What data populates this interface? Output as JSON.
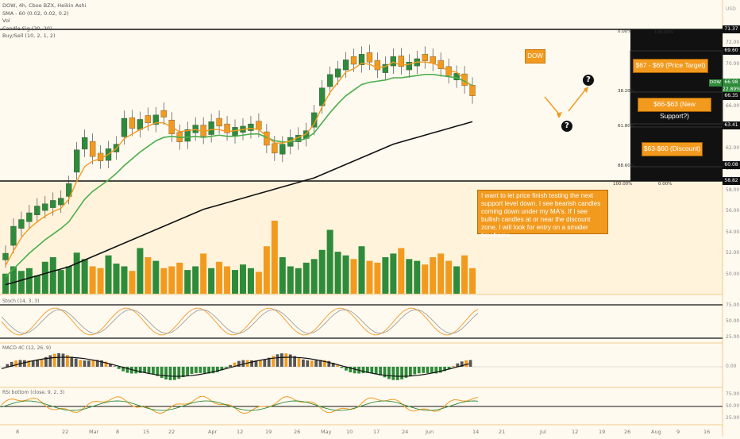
{
  "legend": {
    "main": "DOW, 4h, Cboe BZX, Heikin Ashi",
    "sma": "SMA - 60 (0.02, 0.02, 0.2)",
    "vol": "Vol",
    "comb": "Candle Sig (20, 20)",
    "buysell": "Buy/Sell (10, 2, 1, 2)",
    "stoch": "Stoch (14, 3, 3)",
    "macd": "MACD 4C (12, 26, 9)",
    "rsi": "RSI bottom (close, 9, 2, 3)"
  },
  "ticker_tag": "DOW",
  "note": "I want to let price finish testing the next support level down. I see bearish candles coming down under my MA's. If I see bullish candles at or near the discount zone, I will look for entry on a smaller timeframe.",
  "targets": {
    "target": "$67 - $69 (Price Target)",
    "support": "$66-$63 (New Support?)",
    "discount": "$63-$60 (Discount)"
  },
  "fib": {
    "l0": "0.00%",
    "l100": "100.00%",
    "l38": "38.20%",
    "l61": "61.80%",
    "l88": "88.60%",
    "r100": "100.00%",
    "r0": "0.00%"
  },
  "price_labels": {
    "p1": "71.37",
    "p2": "69.60",
    "p3": "66.98",
    "p4": "22.89%",
    "p5": "66.35",
    "p6": "63.41",
    "p7": "60.08",
    "p8": "58.82",
    "dow": "DOW"
  },
  "axis": {
    "top": "USD",
    "ticks": [
      "72.00",
      "70.00",
      "68.00",
      "66.00",
      "64.00",
      "62.00",
      "60.00",
      "58.00",
      "56.00",
      "54.00",
      "52.00",
      "50.00"
    ],
    "stoch": [
      "75.00",
      "50.00",
      "25.00"
    ],
    "macd": [
      "0.00"
    ],
    "rsi": [
      "75.00",
      "50.00",
      "25.00"
    ]
  },
  "time_ticks": [
    "8",
    "22",
    "Mar",
    "8",
    "15",
    "22",
    "Apr",
    "12",
    "19",
    "26",
    "May",
    "10",
    "17",
    "24",
    "Jun",
    "14",
    "21",
    "Jul",
    "12",
    "19",
    "26",
    "Aug",
    "9",
    "16"
  ],
  "chart_data": {
    "type": "candlestick",
    "ticker": "DOW",
    "timeframe": "4h",
    "exchange": "Cboe BZX",
    "style": "Heikin Ashi",
    "ylim": [
      49,
      73
    ],
    "close": [
      52.6,
      55.0,
      55.6,
      56.2,
      56.8,
      57.0,
      57.3,
      57.5,
      58.8,
      61.8,
      62.9,
      61.2,
      60.8,
      61.9,
      62.3,
      64.6,
      63.7,
      64.5,
      64.2,
      64.9,
      64.7,
      63.2,
      62.5,
      63.6,
      64.0,
      63.0,
      64.3,
      63.9,
      63.3,
      63.8,
      63.9,
      64.1,
      63.6,
      62.2,
      61.5,
      62.3,
      62.9,
      63.1,
      63.5,
      65.1,
      67.3,
      68.5,
      69.0,
      69.8,
      69.4,
      70.3,
      69.6,
      68.9,
      69.4,
      70.1,
      69.2,
      69.6,
      69.9,
      69.7,
      69.5,
      69.0,
      68.4,
      68.6,
      67.5,
      66.6
    ],
    "ma_fast": [
      51.5,
      52.8,
      54.0,
      54.8,
      55.4,
      55.9,
      56.3,
      56.6,
      57.4,
      59.0,
      60.3,
      60.8,
      61.0,
      61.4,
      61.9,
      62.8,
      63.2,
      63.6,
      63.9,
      64.2,
      64.2,
      63.8,
      63.4,
      63.5,
      63.6,
      63.4,
      63.6,
      63.6,
      63.4,
      63.5,
      63.6,
      63.7,
      63.6,
      63.0,
      62.4,
      62.4,
      62.6,
      62.9,
      63.2,
      64.1,
      65.6,
      66.9,
      67.8,
      68.7,
      69.0,
      69.5,
      69.4,
      69.1,
      69.2,
      69.6,
      69.3,
      69.4,
      69.6,
      69.6,
      69.5,
      69.2,
      68.8,
      68.7,
      68.1,
      67.3
    ],
    "ma_slow": [
      50.5,
      51.2,
      51.9,
      52.6,
      53.2,
      53.8,
      54.3,
      54.8,
      55.4,
      56.4,
      57.4,
      58.1,
      58.6,
      59.1,
      59.7,
      60.4,
      61.0,
      61.6,
      62.1,
      62.6,
      62.9,
      63.0,
      62.9,
      62.9,
      63.0,
      62.9,
      63.0,
      63.1,
      63.0,
      63.0,
      63.1,
      63.2,
      63.2,
      62.9,
      62.6,
      62.5,
      62.5,
      62.6,
      62.8,
      63.3,
      64.2,
      65.1,
      65.9,
      66.6,
      67.1,
      67.6,
      67.8,
      67.9,
      68.0,
      68.2,
      68.2,
      68.3,
      68.4,
      68.5,
      68.5,
      68.4,
      68.3,
      68.2,
      67.9,
      67.5
    ],
    "ma_long": [
      49.8,
      50.0,
      50.2,
      50.4,
      50.6,
      50.8,
      51.0,
      51.2,
      51.4,
      51.7,
      52.0,
      52.3,
      52.6,
      52.9,
      53.2,
      53.5,
      53.8,
      54.1,
      54.4,
      54.7,
      55.0,
      55.3,
      55.6,
      55.9,
      56.2,
      56.5,
      56.7,
      56.9,
      57.1,
      57.3,
      57.5,
      57.7,
      57.9,
      58.1,
      58.3,
      58.5,
      58.7,
      58.9,
      59.1,
      59.3,
      59.6,
      59.9,
      60.2,
      60.5,
      60.8,
      61.1,
      61.4,
      61.7,
      62.0,
      62.3,
      62.5,
      62.7,
      62.9,
      63.1,
      63.3,
      63.5,
      63.7,
      63.9,
      64.1,
      64.3
    ],
    "volume": [
      22,
      30,
      25,
      28,
      20,
      35,
      40,
      26,
      30,
      45,
      38,
      30,
      28,
      42,
      33,
      30,
      25,
      50,
      40,
      36,
      28,
      30,
      34,
      26,
      30,
      44,
      28,
      35,
      30,
      26,
      32,
      28,
      24,
      52,
      80,
      40,
      30,
      28,
      34,
      38,
      48,
      70,
      46,
      42,
      38,
      52,
      36,
      34,
      40,
      44,
      50,
      38,
      36,
      32,
      40,
      44,
      36,
      30,
      42,
      28
    ],
    "levels": [
      71.37,
      69.6,
      66.35,
      63.41,
      60.08,
      58.82
    ],
    "current_price": 66.98,
    "fib_levels": [
      "0.00%",
      "38.20%",
      "61.80%",
      "88.60%",
      "100.00%"
    ]
  },
  "colors": {
    "bull": "#2e8b3a",
    "bear": "#f29a1e",
    "neutral": "#111111",
    "ma_fast": "#f29a1e",
    "ma_slow": "#4cae4c",
    "ma_long": "#111111",
    "panel_bg": "#fffaf0"
  }
}
